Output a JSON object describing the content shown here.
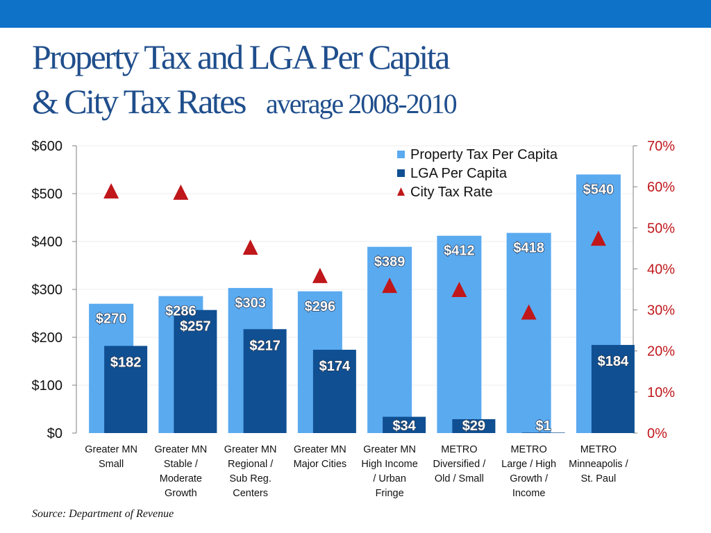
{
  "header": {
    "title_line1": "Property Tax  and LGA Per Capita",
    "title_line2": "& City Tax Rates",
    "subtitle": "average 2008-2010"
  },
  "source": "Source: Department of Revenue",
  "colors": {
    "topbar": "#0e72c8",
    "title": "#1f4e8c",
    "property_tax": "#5aaaf0",
    "lga": "#0f4f92",
    "tax_rate": "#c0171b",
    "right_axis": "#c0171b"
  },
  "chart_data": {
    "type": "bar",
    "categories": [
      [
        "Greater MN",
        "Small"
      ],
      [
        "Greater MN",
        "Stable /",
        "Moderate",
        "Growth"
      ],
      [
        "Greater MN",
        "Regional /",
        "Sub Reg.",
        "Centers"
      ],
      [
        "Greater MN",
        "Major Cities"
      ],
      [
        "Greater MN",
        "High Income",
        "/ Urban",
        "Fringe"
      ],
      [
        "METRO",
        "Diversified /",
        "Old / Small"
      ],
      [
        "METRO",
        "Large / High",
        "Growth /",
        "Income"
      ],
      [
        "METRO",
        "Minneapolis /",
        "St. Paul"
      ]
    ],
    "series": [
      {
        "name": "Property Tax Per Capita",
        "type": "bar",
        "axis": "left",
        "values": [
          270,
          286,
          303,
          296,
          389,
          412,
          418,
          540
        ],
        "labels": [
          "$270",
          "$286",
          "$303",
          "$296",
          "$389",
          "$412",
          "$418",
          "$540"
        ]
      },
      {
        "name": "LGA Per Capita",
        "type": "bar",
        "axis": "left",
        "values": [
          182,
          257,
          217,
          174,
          34,
          29,
          1,
          184
        ],
        "labels": [
          "$182",
          "$257",
          "$217",
          "$174",
          "$34",
          "$29",
          "$1",
          "$184"
        ]
      },
      {
        "name": "City Tax Rate",
        "type": "scatter",
        "marker": "triangle",
        "axis": "right",
        "values": [
          0.59,
          0.587,
          0.453,
          0.384,
          0.36,
          0.35,
          0.295,
          0.475
        ]
      }
    ],
    "ylim": [
      0,
      600
    ],
    "y2lim": [
      0,
      0.7
    ],
    "yticks": [
      "$0",
      "$100",
      "$200",
      "$300",
      "$400",
      "$500",
      "$600"
    ],
    "y2ticks": [
      "0%",
      "10%",
      "20%",
      "30%",
      "40%",
      "50%",
      "60%",
      "70%"
    ],
    "legend": "top-right",
    "grid": true
  }
}
